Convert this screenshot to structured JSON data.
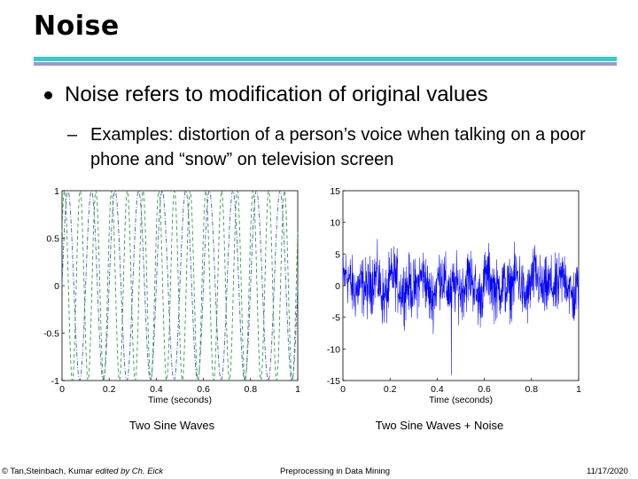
{
  "slide": {
    "title": "Noise",
    "bullet": "Noise refers to modification of original values",
    "sub_dash": "–",
    "sub_bullet": "Examples: distortion of a person’s voice when talking on a poor phone and “snow” on television screen"
  },
  "colors": {
    "title_rule_top": "#33CCCC",
    "title_rule_bottom": "#9999CC",
    "wave1": "#3D5EB8",
    "wave2": "#2E9E4A",
    "noise": "#0000FF"
  },
  "captions": {
    "left": "Two Sine Waves",
    "right": "Two Sine Waves + Noise"
  },
  "footer": {
    "left_main": "© Tan,Steinbach, Kumar ",
    "left_edited": "edited by Ch. Eick",
    "center": "Preprocessing in Data Mining",
    "right": "11/17/2020"
  },
  "chart_data": [
    {
      "type": "line",
      "xlabel": "Time (seconds)",
      "ylabel": "",
      "xlim": [
        0,
        1
      ],
      "ylim": [
        -1,
        1
      ],
      "xticks": [
        0,
        0.2,
        0.4,
        0.6,
        0.8,
        1
      ],
      "xtick_labels": [
        "0",
        "0.2",
        "0.4",
        "0.6",
        "0.8",
        "1"
      ],
      "yticks": [
        1,
        0.5,
        0,
        -0.5,
        -1
      ],
      "ytick_labels": [
        "1",
        "0.5",
        "0",
        "-0.5",
        "-1"
      ],
      "grid": false,
      "series": [
        {
          "frequency_hz": 10,
          "amplitude": 1,
          "color": "#3D5EB8",
          "style": "dash-dot"
        },
        {
          "frequency_hz": 15,
          "amplitude": 1,
          "color": "#2E9E4A",
          "style": "dashed"
        }
      ]
    },
    {
      "type": "line",
      "xlabel": "Time (seconds)",
      "ylabel": "",
      "xlim": [
        0,
        1
      ],
      "ylim": [
        -15,
        15
      ],
      "xticks": [
        0,
        0.2,
        0.4,
        0.6,
        0.8,
        1
      ],
      "xtick_labels": [
        "0",
        "0.2",
        "0.4",
        "0.6",
        "0.8",
        "1"
      ],
      "yticks": [
        15,
        10,
        5,
        0,
        -5,
        -10,
        -15
      ],
      "ytick_labels": [
        "15",
        "10",
        "5",
        "0",
        "-5",
        "-10",
        "-15"
      ],
      "grid": false,
      "series": [
        {
          "signal": "sum of two sine waves plus random noise",
          "noise_range": [
            -9,
            8
          ],
          "color": "#0000FF",
          "style": "solid"
        }
      ]
    }
  ]
}
